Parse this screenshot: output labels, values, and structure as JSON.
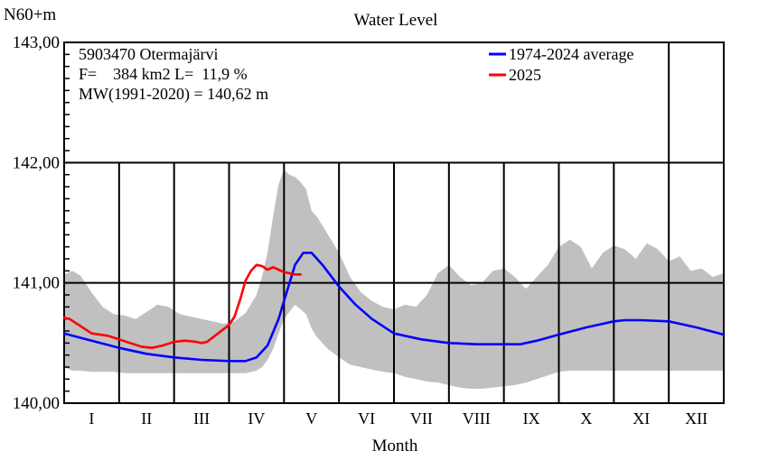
{
  "chart_data": {
    "type": "line",
    "title": "Water Level",
    "ylabel": "N60+m",
    "xlabel": "Month",
    "ylim": [
      140.0,
      143.0
    ],
    "y_ticks": [
      "140,00",
      "141,00",
      "142,00",
      "143,00"
    ],
    "categories": [
      "I",
      "II",
      "III",
      "IV",
      "V",
      "VI",
      "VII",
      "VIII",
      "IX",
      "X",
      "XI",
      "XII"
    ],
    "info_lines": [
      "5903470 Otermajärvi",
      "F=    384 km2 L=  11,9 %",
      "MW(1991-2020) = 140,62 m"
    ],
    "legend_position": "top-right",
    "colors": {
      "average": "#0000ff",
      "current": "#ff0000",
      "range": "#c0c0c0",
      "grid": "#000000"
    },
    "range_band": {
      "x": [
        0.0,
        0.15,
        0.3,
        0.5,
        0.7,
        0.9,
        1.1,
        1.3,
        1.5,
        1.7,
        1.9,
        2.1,
        2.3,
        2.5,
        2.7,
        2.9,
        3.1,
        3.3,
        3.5,
        3.6,
        3.7,
        3.8,
        3.9,
        4.0,
        4.1,
        4.2,
        4.3,
        4.4,
        4.5,
        4.6,
        4.8,
        5.0,
        5.2,
        5.4,
        5.6,
        5.8,
        6.0,
        6.2,
        6.4,
        6.6,
        6.8,
        7.0,
        7.2,
        7.4,
        7.6,
        7.8,
        8.0,
        8.2,
        8.4,
        8.6,
        8.8,
        9.0,
        9.2,
        9.4,
        9.6,
        9.8,
        10.0,
        10.2,
        10.4,
        10.6,
        10.8,
        11.0,
        11.2,
        11.4,
        11.6,
        11.8,
        12.0
      ],
      "max": [
        141.07,
        141.1,
        141.06,
        140.92,
        140.8,
        140.74,
        140.73,
        140.7,
        140.76,
        140.82,
        140.8,
        140.74,
        140.72,
        140.7,
        140.68,
        140.66,
        140.68,
        140.75,
        140.9,
        141.05,
        141.25,
        141.55,
        141.82,
        141.94,
        141.9,
        141.88,
        141.84,
        141.78,
        141.6,
        141.55,
        141.4,
        141.25,
        141.05,
        140.92,
        140.85,
        140.8,
        140.78,
        140.82,
        140.8,
        140.9,
        141.08,
        141.15,
        141.05,
        140.98,
        141.0,
        141.1,
        141.12,
        141.05,
        140.95,
        141.05,
        141.15,
        141.3,
        141.36,
        141.3,
        141.12,
        141.25,
        141.31,
        141.28,
        141.2,
        141.33,
        141.28,
        141.18,
        141.22,
        141.1,
        141.12,
        141.05,
        141.08
      ],
      "min": [
        140.3,
        140.27,
        140.27,
        140.26,
        140.26,
        140.26,
        140.25,
        140.25,
        140.25,
        140.25,
        140.25,
        140.25,
        140.25,
        140.25,
        140.25,
        140.25,
        140.25,
        140.25,
        140.27,
        140.3,
        140.36,
        140.45,
        140.58,
        140.7,
        140.76,
        140.82,
        140.78,
        140.74,
        140.62,
        140.55,
        140.45,
        140.38,
        140.32,
        140.3,
        140.28,
        140.26,
        140.25,
        140.22,
        140.2,
        140.18,
        140.17,
        140.15,
        140.13,
        140.12,
        140.12,
        140.13,
        140.14,
        140.15,
        140.17,
        140.2,
        140.23,
        140.26,
        140.27,
        140.27,
        140.27,
        140.27,
        140.27,
        140.27,
        140.27,
        140.27,
        140.27,
        140.27,
        140.27,
        140.27,
        140.27,
        140.27,
        140.27
      ]
    },
    "series": [
      {
        "name": "1974-2024 average",
        "x": [
          0.0,
          0.5,
          1.0,
          1.5,
          2.0,
          2.5,
          3.0,
          3.3,
          3.5,
          3.7,
          3.9,
          4.0,
          4.1,
          4.2,
          4.35,
          4.5,
          4.7,
          5.0,
          5.3,
          5.6,
          6.0,
          6.5,
          7.0,
          7.5,
          8.0,
          8.3,
          8.6,
          9.0,
          9.5,
          10.0,
          10.2,
          10.5,
          11.0,
          11.5,
          12.0
        ],
        "y": [
          140.58,
          140.52,
          140.46,
          140.41,
          140.38,
          140.36,
          140.35,
          140.35,
          140.38,
          140.48,
          140.7,
          140.85,
          141.0,
          141.15,
          141.25,
          141.25,
          141.15,
          140.97,
          140.82,
          140.7,
          140.58,
          140.53,
          140.5,
          140.49,
          140.49,
          140.49,
          140.52,
          140.57,
          140.63,
          140.68,
          140.69,
          140.69,
          140.68,
          140.63,
          140.57
        ]
      },
      {
        "name": "2025",
        "x": [
          0.0,
          0.1,
          0.3,
          0.5,
          0.8,
          1.0,
          1.2,
          1.4,
          1.6,
          1.8,
          2.0,
          2.2,
          2.4,
          2.5,
          2.6,
          2.8,
          3.0,
          3.1,
          3.2,
          3.3,
          3.4,
          3.5,
          3.6,
          3.7,
          3.8,
          3.9,
          4.0,
          4.1,
          4.2,
          4.3
        ],
        "y": [
          140.71,
          140.7,
          140.64,
          140.58,
          140.56,
          140.53,
          140.5,
          140.47,
          140.46,
          140.48,
          140.51,
          140.52,
          140.51,
          140.5,
          140.51,
          140.58,
          140.65,
          140.72,
          140.86,
          141.02,
          141.1,
          141.15,
          141.14,
          141.11,
          141.13,
          141.11,
          141.09,
          141.08,
          141.07,
          141.07
        ]
      }
    ]
  }
}
